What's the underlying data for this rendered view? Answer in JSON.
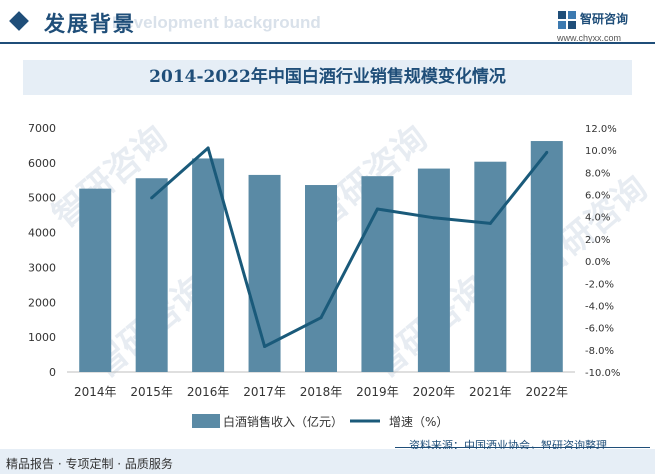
{
  "header": {
    "title": "发展背景",
    "title_en": "Development background"
  },
  "logo": {
    "name": "智研咨询",
    "url": "www.chyxx.com"
  },
  "watermark_text": "智研咨询",
  "chart_data": {
    "type": "bar",
    "title": "2014-2022年中国白酒行业销售规模变化情况",
    "categories": [
      "2014年",
      "2015年",
      "2016年",
      "2017年",
      "2018年",
      "2019年",
      "2020年",
      "2021年",
      "2022年"
    ],
    "series": [
      {
        "name": "白酒销售收入（亿元）",
        "kind": "bar",
        "axis": "left",
        "color": "#5a8aa5",
        "values": [
          5260,
          5559,
          6126,
          5654,
          5364,
          5618,
          5836,
          6033,
          6626
        ]
      },
      {
        "name": "增速（%）",
        "kind": "line",
        "axis": "right",
        "color": "#1a5a7a",
        "values": [
          null,
          5.7,
          10.2,
          -7.7,
          -5.1,
          4.7,
          3.9,
          3.4,
          9.8
        ]
      }
    ],
    "y_left": {
      "min": 0,
      "max": 7000,
      "step": 1000,
      "ticks": [
        "0",
        "1000",
        "2000",
        "3000",
        "4000",
        "5000",
        "6000",
        "7000"
      ]
    },
    "y_right": {
      "min": -10,
      "max": 12,
      "step": 2,
      "ticks": [
        "-10.0%",
        "-8.0%",
        "-6.0%",
        "-4.0%",
        "-2.0%",
        "0.0%",
        "2.0%",
        "4.0%",
        "6.0%",
        "8.0%",
        "10.0%",
        "12.0%"
      ]
    },
    "legend": {
      "position": "bottom",
      "items": [
        "白酒销售收入（亿元）",
        "增速（%）"
      ]
    },
    "source": "资料来源：中国酒业协会，智研咨询整理"
  },
  "footer": {
    "left_text": "精品报告 · 专项定制 · 品质服务"
  }
}
